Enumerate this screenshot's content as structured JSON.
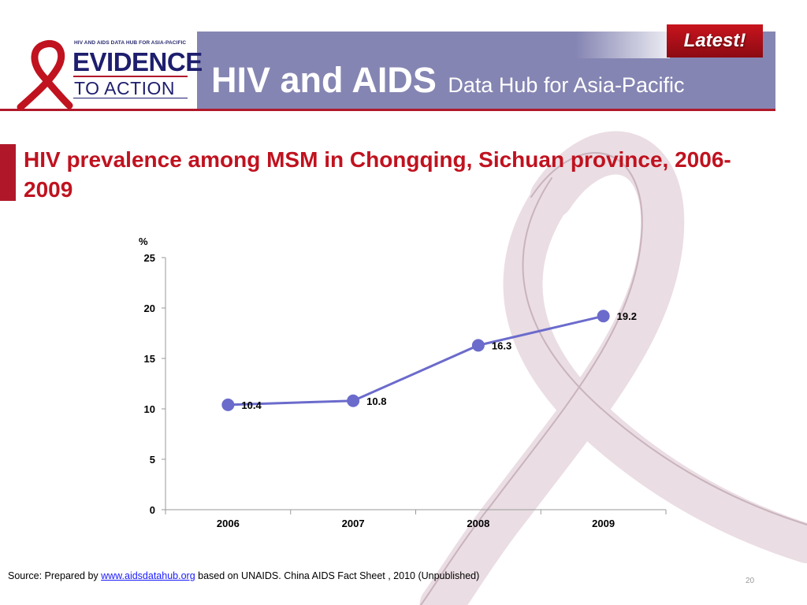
{
  "header": {
    "badge": "Latest!",
    "title_main": "HIV and AIDS",
    "title_sub": "Data Hub for Asia-Pacific",
    "logo": {
      "small_text": "HIV AND AIDS DATA HUB FOR ASIA-PACIFIC",
      "line1": "EVIDENCE",
      "line2": "TO ACTION"
    }
  },
  "slide_title": "HIV prevalence among MSM in  Chongqing, Sichuan province, 2006-2009",
  "chart_data": {
    "type": "line",
    "title": "",
    "ylabel": "%",
    "xlabel": "",
    "categories": [
      "2006",
      "2007",
      "2008",
      "2009"
    ],
    "series": [
      {
        "values": [
          10.4,
          10.8,
          16.3,
          19.2
        ]
      }
    ],
    "data_labels": [
      "10.4",
      "10.8",
      "16.3",
      "19.2"
    ],
    "ylim": [
      0,
      25
    ],
    "yticks": [
      0,
      5,
      10,
      15,
      20,
      25
    ],
    "grid": false,
    "legend": "none",
    "series_color": "#6b6bcc",
    "marker_color": "#6b6bcc"
  },
  "footer": {
    "source_prefix": "Source: Prepared by ",
    "source_link": "www.aidsdatahub.org",
    "source_suffix": "  based on UNAIDS. China AIDS Fact Sheet , 2010 (Unpublished)",
    "page_number": "20"
  },
  "colors": {
    "header_band": "#8585b3",
    "accent_red": "#b0182a",
    "title_red": "#c0121f",
    "ribbon_pink": "#eadde3"
  }
}
